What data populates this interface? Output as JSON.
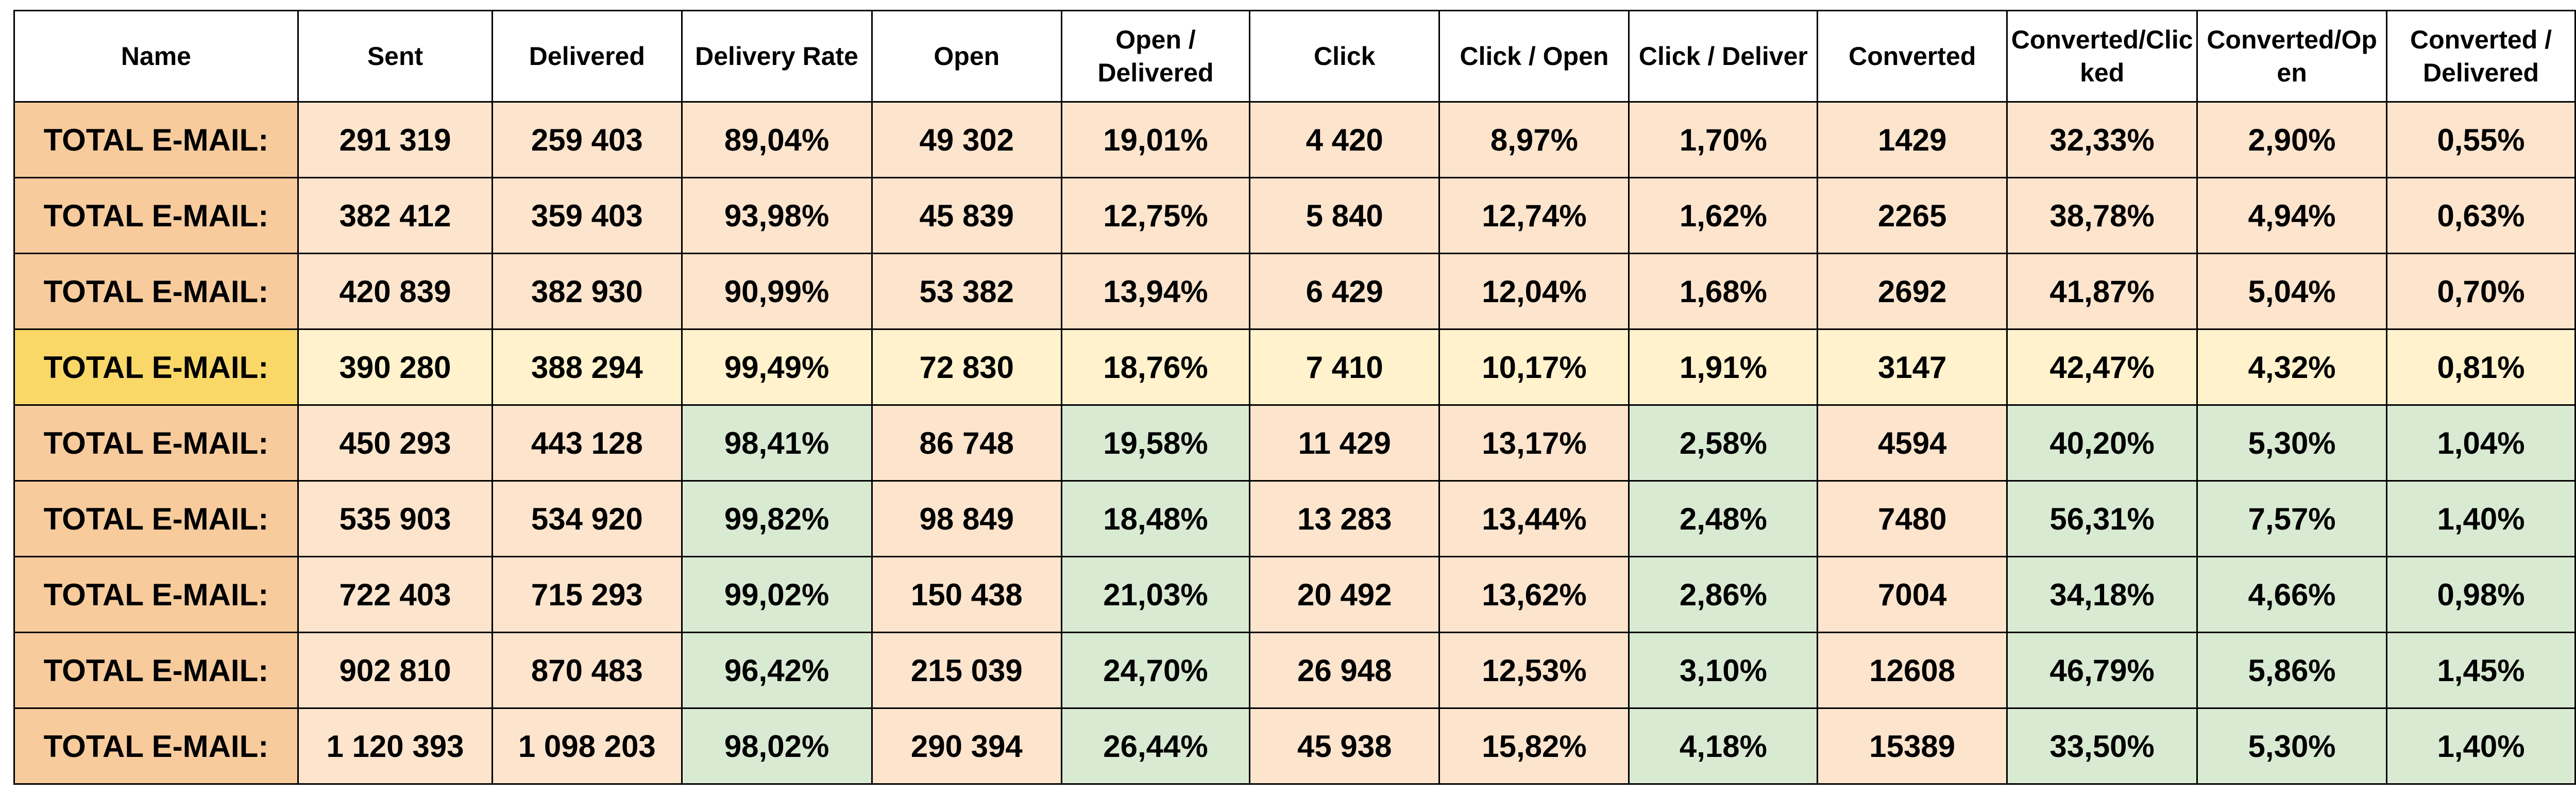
{
  "table": {
    "header": [
      "Name",
      "Sent",
      "Delivered",
      "Delivery Rate",
      "Open",
      "Open / Delivered",
      "Click",
      "Click / Open",
      "Click / Deliver",
      "Converted",
      "Converted/Clicked",
      "Converted/Open",
      "Converted / Delivered"
    ],
    "rows": [
      [
        "TOTAL E-MAIL:",
        "291 319",
        "259 403",
        "89,04%",
        "49 302",
        "19,01%",
        "4 420",
        "8,97%",
        "1,70%",
        "1429",
        "32,33%",
        "2,90%",
        "0,55%"
      ],
      [
        "TOTAL E-MAIL:",
        "382 412",
        "359 403",
        "93,98%",
        "45 839",
        "12,75%",
        "5 840",
        "12,74%",
        "1,62%",
        "2265",
        "38,78%",
        "4,94%",
        "0,63%"
      ],
      [
        "TOTAL E-MAIL:",
        "420 839",
        "382 930",
        "90,99%",
        "53 382",
        "13,94%",
        "6 429",
        "12,04%",
        "1,68%",
        "2692",
        "41,87%",
        "5,04%",
        "0,70%"
      ],
      [
        "TOTAL E-MAIL:",
        "390 280",
        "388 294",
        "99,49%",
        "72 830",
        "18,76%",
        "7 410",
        "10,17%",
        "1,91%",
        "3147",
        "42,47%",
        "4,32%",
        "0,81%"
      ],
      [
        "TOTAL E-MAIL:",
        "450 293",
        "443 128",
        "98,41%",
        "86 748",
        "19,58%",
        "11 429",
        "13,17%",
        "2,58%",
        "4594",
        "40,20%",
        "5,30%",
        "1,04%"
      ],
      [
        "TOTAL E-MAIL:",
        "535 903",
        "534 920",
        "99,82%",
        "98 849",
        "18,48%",
        "13 283",
        "13,44%",
        "2,48%",
        "7480",
        "56,31%",
        "7,57%",
        "1,40%"
      ],
      [
        "TOTAL E-MAIL:",
        "722 403",
        "715 293",
        "99,02%",
        "150 438",
        "21,03%",
        "20 492",
        "13,62%",
        "2,86%",
        "7004",
        "34,18%",
        "4,66%",
        "0,98%"
      ],
      [
        "TOTAL E-MAIL:",
        "902 810",
        "870 483",
        "96,42%",
        "215 039",
        "24,70%",
        "26 948",
        "12,53%",
        "3,10%",
        "12608",
        "46,79%",
        "5,86%",
        "1,45%"
      ],
      [
        "TOTAL E-MAIL:",
        "1 120 393",
        "1 098 203",
        "98,02%",
        "290 394",
        "26,44%",
        "45 938",
        "15,82%",
        "4,18%",
        "15389",
        "33,50%",
        "5,30%",
        "1,40%"
      ]
    ]
  }
}
